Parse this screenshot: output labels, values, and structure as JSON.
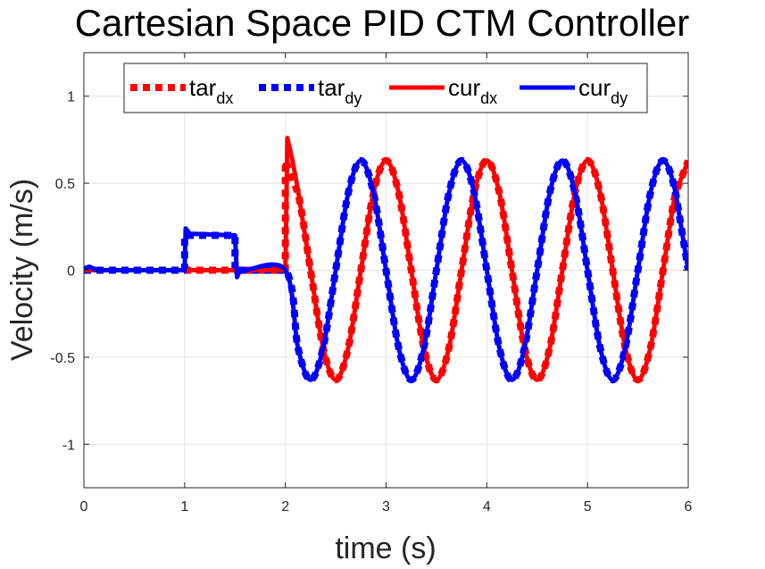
{
  "chart_data": {
    "type": "line",
    "title": "Cartesian Space PID CTM Controller",
    "xlabel": "time (s)",
    "ylabel": "Velocity (m/s)",
    "xlim": [
      0,
      6
    ],
    "ylim": [
      -1.25,
      1.25
    ],
    "xticks": [
      0,
      1,
      2,
      3,
      4,
      5,
      6
    ],
    "yticks": [
      -1,
      -0.5,
      0,
      0.5,
      1
    ],
    "xtick_labels": [
      "0",
      "1",
      "2",
      "3",
      "4",
      "5",
      "6"
    ],
    "ytick_labels": [
      "-1",
      "-0.5",
      "0",
      "0.5",
      "1"
    ],
    "grid": true,
    "legend_position": "top",
    "series": [
      {
        "name": "tar_dx",
        "name_base": "tar",
        "name_sub": "dx",
        "color": "#ff0000",
        "style": "dashed",
        "x": [
          0,
          1.0,
          2.0,
          2.0,
          2.125,
          2.25,
          2.375,
          2.5,
          2.625,
          2.75,
          2.875,
          3.0,
          3.125,
          3.25,
          3.375,
          3.5,
          3.625,
          3.75,
          3.875,
          4.0,
          4.125,
          4.25,
          4.375,
          4.5,
          4.625,
          4.75,
          4.875,
          5.0,
          5.125,
          5.25,
          5.375,
          5.5,
          5.625,
          5.75,
          5.875,
          6.0
        ],
        "y": [
          0,
          0,
          0,
          0.63,
          0.445,
          0,
          -0.445,
          -0.63,
          -0.445,
          0,
          0.445,
          0.63,
          0.445,
          0,
          -0.445,
          -0.63,
          -0.445,
          0,
          0.445,
          0.63,
          0.445,
          0,
          -0.445,
          -0.63,
          -0.445,
          0,
          0.445,
          0.63,
          0.445,
          0,
          -0.445,
          -0.63,
          -0.445,
          0,
          0.445,
          0.63
        ]
      },
      {
        "name": "tar_dy",
        "name_base": "tar",
        "name_sub": "dy",
        "color": "#0000ff",
        "style": "dashed",
        "x": [
          0,
          1.0,
          1.0,
          1.5,
          1.5,
          2.0,
          2.125,
          2.25,
          2.375,
          2.5,
          2.625,
          2.75,
          2.875,
          3.0,
          3.125,
          3.25,
          3.375,
          3.5,
          3.625,
          3.75,
          3.875,
          4.0,
          4.125,
          4.25,
          4.375,
          4.5,
          4.625,
          4.75,
          4.875,
          5.0,
          5.125,
          5.25,
          5.375,
          5.5,
          5.625,
          5.75,
          5.875,
          6.0
        ],
        "y": [
          0,
          0,
          0.2,
          0.2,
          0,
          0,
          -0.445,
          -0.63,
          -0.445,
          0,
          0.445,
          0.63,
          0.445,
          0,
          -0.445,
          -0.63,
          -0.445,
          0,
          0.445,
          0.63,
          0.445,
          0,
          -0.445,
          -0.63,
          -0.445,
          0,
          0.445,
          0.63,
          0.445,
          0,
          -0.445,
          -0.63,
          -0.445,
          0,
          0.445,
          0.63,
          0.445,
          0
        ]
      },
      {
        "name": "cur_dx",
        "name_base": "cur",
        "name_sub": "dx",
        "color": "#ff0000",
        "style": "solid",
        "x": [
          0,
          1.0,
          2.0,
          2.02,
          2.06,
          2.125,
          2.25,
          2.375,
          2.5,
          2.625,
          2.75,
          2.875,
          3.0,
          3.125,
          3.25,
          3.375,
          3.5,
          3.625,
          3.75,
          3.875,
          4.0,
          4.125,
          4.25,
          4.375,
          4.5,
          4.625,
          4.75,
          4.875,
          5.0,
          5.125,
          5.25,
          5.375,
          5.5,
          5.625,
          5.75,
          5.875,
          6.0
        ],
        "y": [
          0,
          0,
          0,
          0.76,
          0.66,
          0.46,
          0,
          -0.445,
          -0.63,
          -0.445,
          0,
          0.445,
          0.63,
          0.445,
          0,
          -0.445,
          -0.63,
          -0.445,
          0,
          0.445,
          0.63,
          0.445,
          0,
          -0.445,
          -0.63,
          -0.445,
          0,
          0.445,
          0.63,
          0.445,
          0,
          -0.445,
          -0.63,
          -0.445,
          0,
          0.445,
          0.63
        ]
      },
      {
        "name": "cur_dy",
        "name_base": "cur",
        "name_sub": "dy",
        "color": "#0000ff",
        "style": "solid",
        "x": [
          0,
          0.05,
          0.1,
          0.2,
          1.0,
          1.01,
          1.05,
          1.5,
          1.52,
          1.55,
          1.6,
          2.0,
          2.125,
          2.25,
          2.375,
          2.5,
          2.625,
          2.75,
          2.875,
          3.0,
          3.125,
          3.25,
          3.375,
          3.5,
          3.625,
          3.75,
          3.875,
          4.0,
          4.125,
          4.25,
          4.375,
          4.5,
          4.625,
          4.75,
          4.875,
          5.0,
          5.125,
          5.25,
          5.375,
          5.5,
          5.625,
          5.75,
          5.875,
          6.0
        ],
        "y": [
          0.01,
          0.02,
          0.01,
          0,
          0,
          0.24,
          0.21,
          0.2,
          -0.04,
          0.0,
          0,
          0,
          -0.445,
          -0.63,
          -0.445,
          0,
          0.445,
          0.63,
          0.445,
          0,
          -0.445,
          -0.63,
          -0.445,
          0,
          0.445,
          0.63,
          0.445,
          0,
          -0.445,
          -0.63,
          -0.445,
          0,
          0.445,
          0.63,
          0.445,
          0,
          -0.445,
          -0.63,
          -0.445,
          0,
          0.445,
          0.63,
          0.445,
          0
        ]
      }
    ]
  }
}
